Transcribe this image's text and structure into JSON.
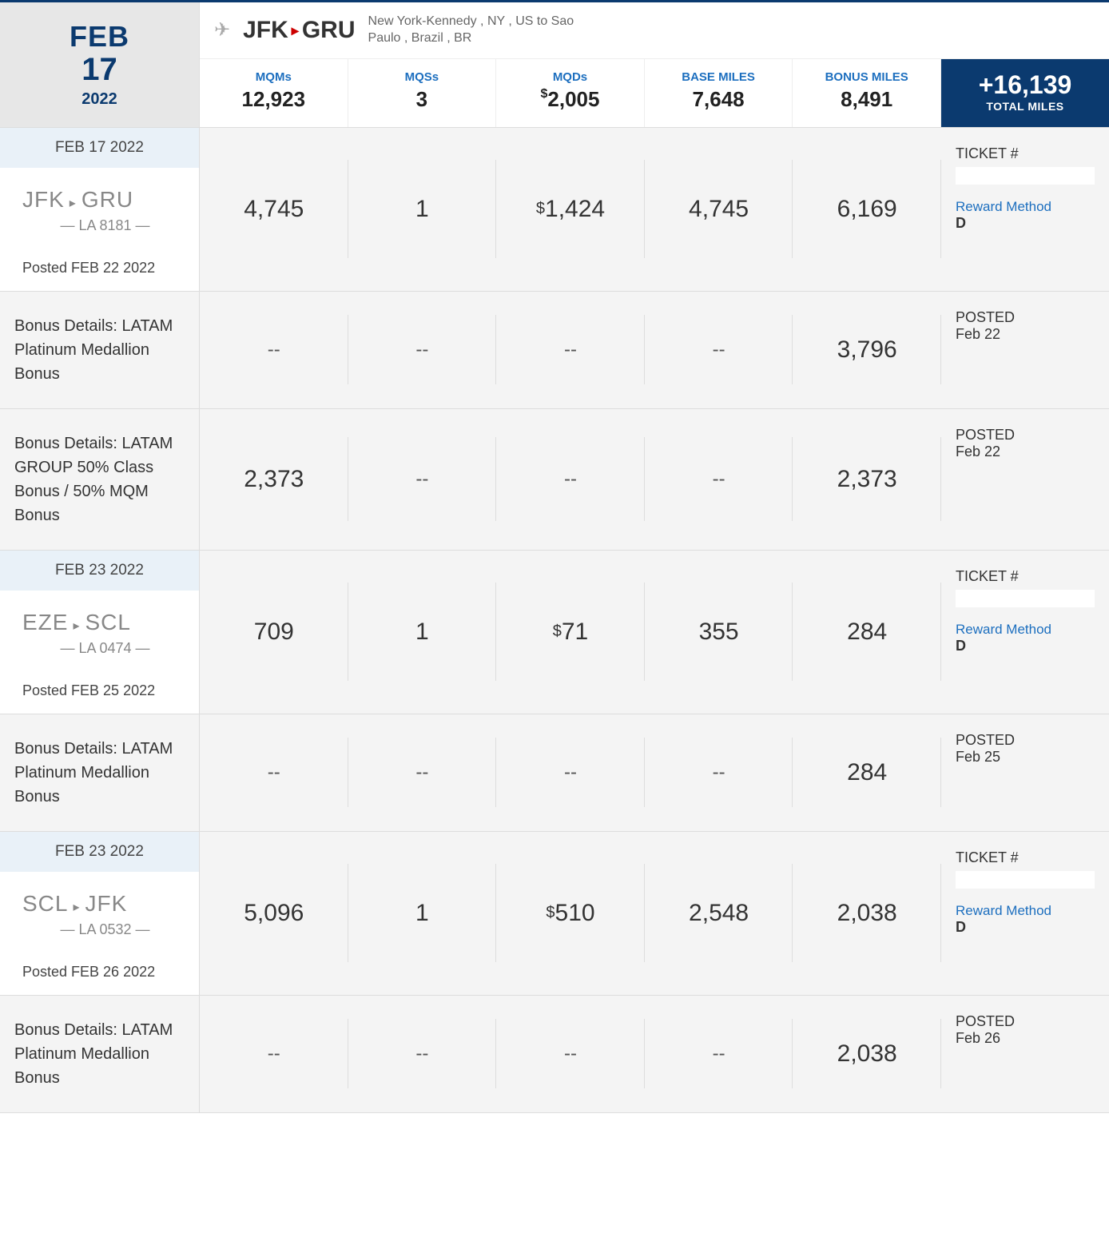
{
  "header": {
    "month": "FEB",
    "day": "17",
    "year": "2022",
    "route_from": "JFK",
    "route_to": "GRU",
    "route_desc": "New York-Kennedy , NY , US to Sao Paulo , Brazil , BR",
    "metrics": {
      "mqms_label": "MQMs",
      "mqms": "12,923",
      "mqss_label": "MQSs",
      "mqss": "3",
      "mqds_label": "MQDs",
      "mqds": "2,005",
      "base_label": "BASE MILES",
      "base": "7,648",
      "bonus_label": "BONUS MILES",
      "bonus": "8,491",
      "total_big": "+16,139",
      "total_small": "TOTAL MILES"
    }
  },
  "rows": [
    {
      "type": "flight",
      "date": "FEB 17 2022",
      "from": "JFK",
      "to": "GRU",
      "flight_num": "— LA 8181 —",
      "posted": "Posted FEB 22 2022",
      "mqms": "4,745",
      "mqss": "1",
      "mqds": "1,424",
      "base": "4,745",
      "bonus": "6,169",
      "right": {
        "ticket_label": "TICKET #",
        "rm_label": "Reward Method",
        "rm_val": "D"
      }
    },
    {
      "type": "bonus",
      "desc": "Bonus Details: LATAM Platinum Medallion Bonus",
      "mqms": "--",
      "mqss": "--",
      "mqds": "--",
      "base": "--",
      "bonus": "3,796",
      "right": {
        "posted1": "POSTED",
        "posted2": "Feb 22"
      }
    },
    {
      "type": "bonus",
      "desc": "Bonus Details: LATAM GROUP 50% Class Bonus / 50% MQM Bonus",
      "mqms": "2,373",
      "mqss": "--",
      "mqds": "--",
      "base": "--",
      "bonus": "2,373",
      "right": {
        "posted1": "POSTED",
        "posted2": "Feb 22"
      }
    },
    {
      "type": "flight",
      "date": "FEB 23 2022",
      "from": "EZE",
      "to": "SCL",
      "flight_num": "— LA 0474 —",
      "posted": "Posted FEB 25 2022",
      "mqms": "709",
      "mqss": "1",
      "mqds": "71",
      "base": "355",
      "bonus": "284",
      "right": {
        "ticket_label": "TICKET #",
        "rm_label": "Reward Method",
        "rm_val": "D"
      }
    },
    {
      "type": "bonus",
      "desc": "Bonus Details: LATAM Platinum Medallion Bonus",
      "mqms": "--",
      "mqss": "--",
      "mqds": "--",
      "base": "--",
      "bonus": "284",
      "right": {
        "posted1": "POSTED",
        "posted2": "Feb 25"
      }
    },
    {
      "type": "flight",
      "date": "FEB 23 2022",
      "from": "SCL",
      "to": "JFK",
      "flight_num": "— LA 0532 —",
      "posted": "Posted FEB 26 2022",
      "mqms": "5,096",
      "mqss": "1",
      "mqds": "510",
      "base": "2,548",
      "bonus": "2,038",
      "right": {
        "ticket_label": "TICKET #",
        "rm_label": "Reward Method",
        "rm_val": "D"
      }
    },
    {
      "type": "bonus",
      "desc": "Bonus Details: LATAM Platinum Medallion Bonus",
      "mqms": "--",
      "mqss": "--",
      "mqds": "--",
      "base": "--",
      "bonus": "2,038",
      "right": {
        "posted1": "POSTED",
        "posted2": "Feb 26"
      }
    }
  ],
  "colors": {
    "navy": "#0b3a6f",
    "link_blue": "#1d6fbf",
    "red_sep": "#c00",
    "light_gray_bg": "#f4f4f4",
    "header_gray": "#e7e7e7",
    "date_blue_bg": "#e9f1f8"
  }
}
